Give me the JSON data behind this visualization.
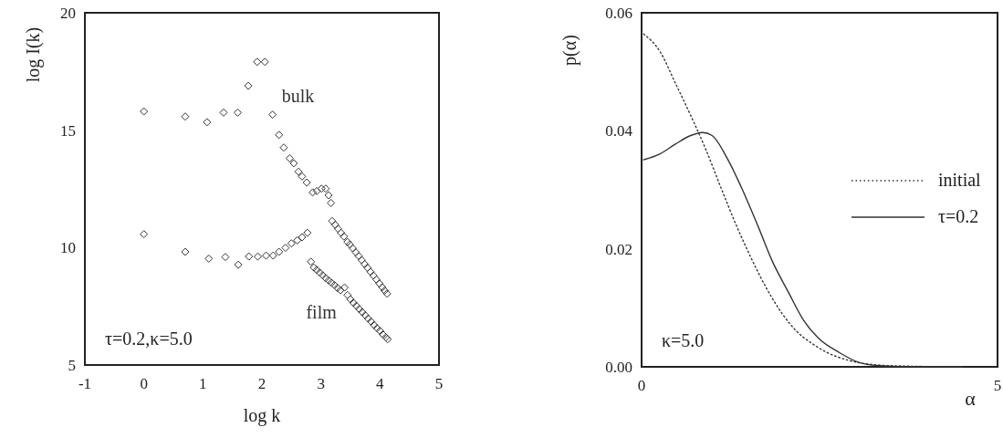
{
  "chart_data": [
    {
      "type": "scatter",
      "xlabel": "log k",
      "ylabel": "log I(k)",
      "xlim": [
        -1,
        5
      ],
      "ylim": [
        5,
        20
      ],
      "xticks": [
        -1,
        0,
        1,
        2,
        3,
        4,
        5
      ],
      "yticks": [
        5,
        10,
        15,
        20
      ],
      "marker": "diamond",
      "grid": false,
      "legend": false,
      "annotations": [
        "τ=0.2,κ=5.0"
      ],
      "series": [
        {
          "name": "bulk",
          "color": "#333333",
          "x": [
            0,
            0.7,
            1.07,
            1.35,
            1.59,
            1.77,
            1.92,
            2.05,
            2.18,
            2.29,
            2.37,
            2.47,
            2.54,
            2.62,
            2.68,
            2.76,
            2.86,
            2.93,
            3.01,
            3.08,
            3.13,
            3.17,
            3.19,
            3.24,
            3.29,
            3.34,
            3.39,
            3.45,
            3.49,
            3.54,
            3.59,
            3.64,
            3.69,
            3.74,
            3.79,
            3.84,
            3.89,
            3.94,
            3.99,
            4.04,
            4.08,
            4.12
          ],
          "values": [
            15.8,
            15.58,
            15.34,
            15.75,
            15.75,
            16.89,
            17.91,
            17.91,
            15.66,
            14.8,
            14.26,
            13.8,
            13.59,
            13.23,
            13.03,
            12.77,
            12.35,
            12.41,
            12.51,
            12.51,
            12.23,
            11.9,
            11.13,
            10.97,
            10.8,
            10.63,
            10.47,
            10.24,
            10.13,
            9.97,
            9.8,
            9.64,
            9.47,
            9.3,
            9.14,
            8.97,
            8.81,
            8.64,
            8.47,
            8.31,
            8.17,
            8.04
          ]
        },
        {
          "name": "film",
          "color": "#333333",
          "x": [
            0,
            0.7,
            1.1,
            1.38,
            1.6,
            1.78,
            1.93,
            2.07,
            2.19,
            2.29,
            2.4,
            2.5,
            2.6,
            2.68,
            2.77,
            2.83,
            2.88,
            2.93,
            2.98,
            3.03,
            3.08,
            3.13,
            3.18,
            3.23,
            3.28,
            3.33,
            3.4,
            3.45,
            3.5,
            3.55,
            3.6,
            3.65,
            3.7,
            3.75,
            3.8,
            3.85,
            3.9,
            3.95,
            4.0,
            4.05,
            4.1,
            4.13
          ],
          "values": [
            10.57,
            9.82,
            9.53,
            9.6,
            9.27,
            9.62,
            9.62,
            9.66,
            9.66,
            9.82,
            9.99,
            10.18,
            10.31,
            10.44,
            10.63,
            9.4,
            9.15,
            9.05,
            8.93,
            8.82,
            8.7,
            8.6,
            8.5,
            8.4,
            8.28,
            8.18,
            8.3,
            7.98,
            7.8,
            7.65,
            7.52,
            7.38,
            7.25,
            7.12,
            6.98,
            6.85,
            6.7,
            6.57,
            6.45,
            6.3,
            6.18,
            6.1
          ]
        }
      ]
    },
    {
      "type": "line",
      "xlabel": "α",
      "ylabel": "p(α)",
      "xlim": [
        0,
        5
      ],
      "ylim": [
        0,
        0.06
      ],
      "xticks": [
        0,
        5
      ],
      "yticks": [
        {
          "value": 0,
          "label": "0.00"
        },
        {
          "value": 0.02,
          "label": "0.02"
        },
        {
          "value": 0.04,
          "label": "0.04"
        },
        {
          "value": 0.06,
          "label": "0.06"
        }
      ],
      "grid": false,
      "legend": "right",
      "annotations": [
        "κ=5.0"
      ],
      "series": [
        {
          "name": "initial",
          "color": "#333333",
          "line_style": "dotted",
          "x": [
            0.03,
            0.26,
            0.47,
            0.69,
            0.9,
            1.12,
            1.33,
            1.54,
            1.76,
            1.97,
            2.18,
            2.4,
            2.61,
            2.91,
            3.33,
            3.8,
            4.5
          ],
          "values": [
            0.0564,
            0.0534,
            0.0482,
            0.0426,
            0.0369,
            0.0302,
            0.024,
            0.0184,
            0.0132,
            0.0091,
            0.006,
            0.0039,
            0.0024,
            0.0011,
            0.0003,
            0.0001,
            0
          ]
        },
        {
          "name": "τ=0.2",
          "color": "#333333",
          "line_style": "solid",
          "x": [
            0.03,
            0.26,
            0.47,
            0.69,
            0.86,
            0.99,
            1.2,
            1.41,
            1.63,
            1.84,
            2.06,
            2.27,
            2.48,
            2.78,
            3.04,
            3.33,
            3.8,
            4.5
          ],
          "values": [
            0.0351,
            0.0361,
            0.0377,
            0.0392,
            0.0397,
            0.0392,
            0.0354,
            0.0302,
            0.024,
            0.0178,
            0.0127,
            0.008,
            0.0049,
            0.0024,
            0.0008,
            0.0002,
            0,
            0
          ]
        }
      ]
    }
  ]
}
